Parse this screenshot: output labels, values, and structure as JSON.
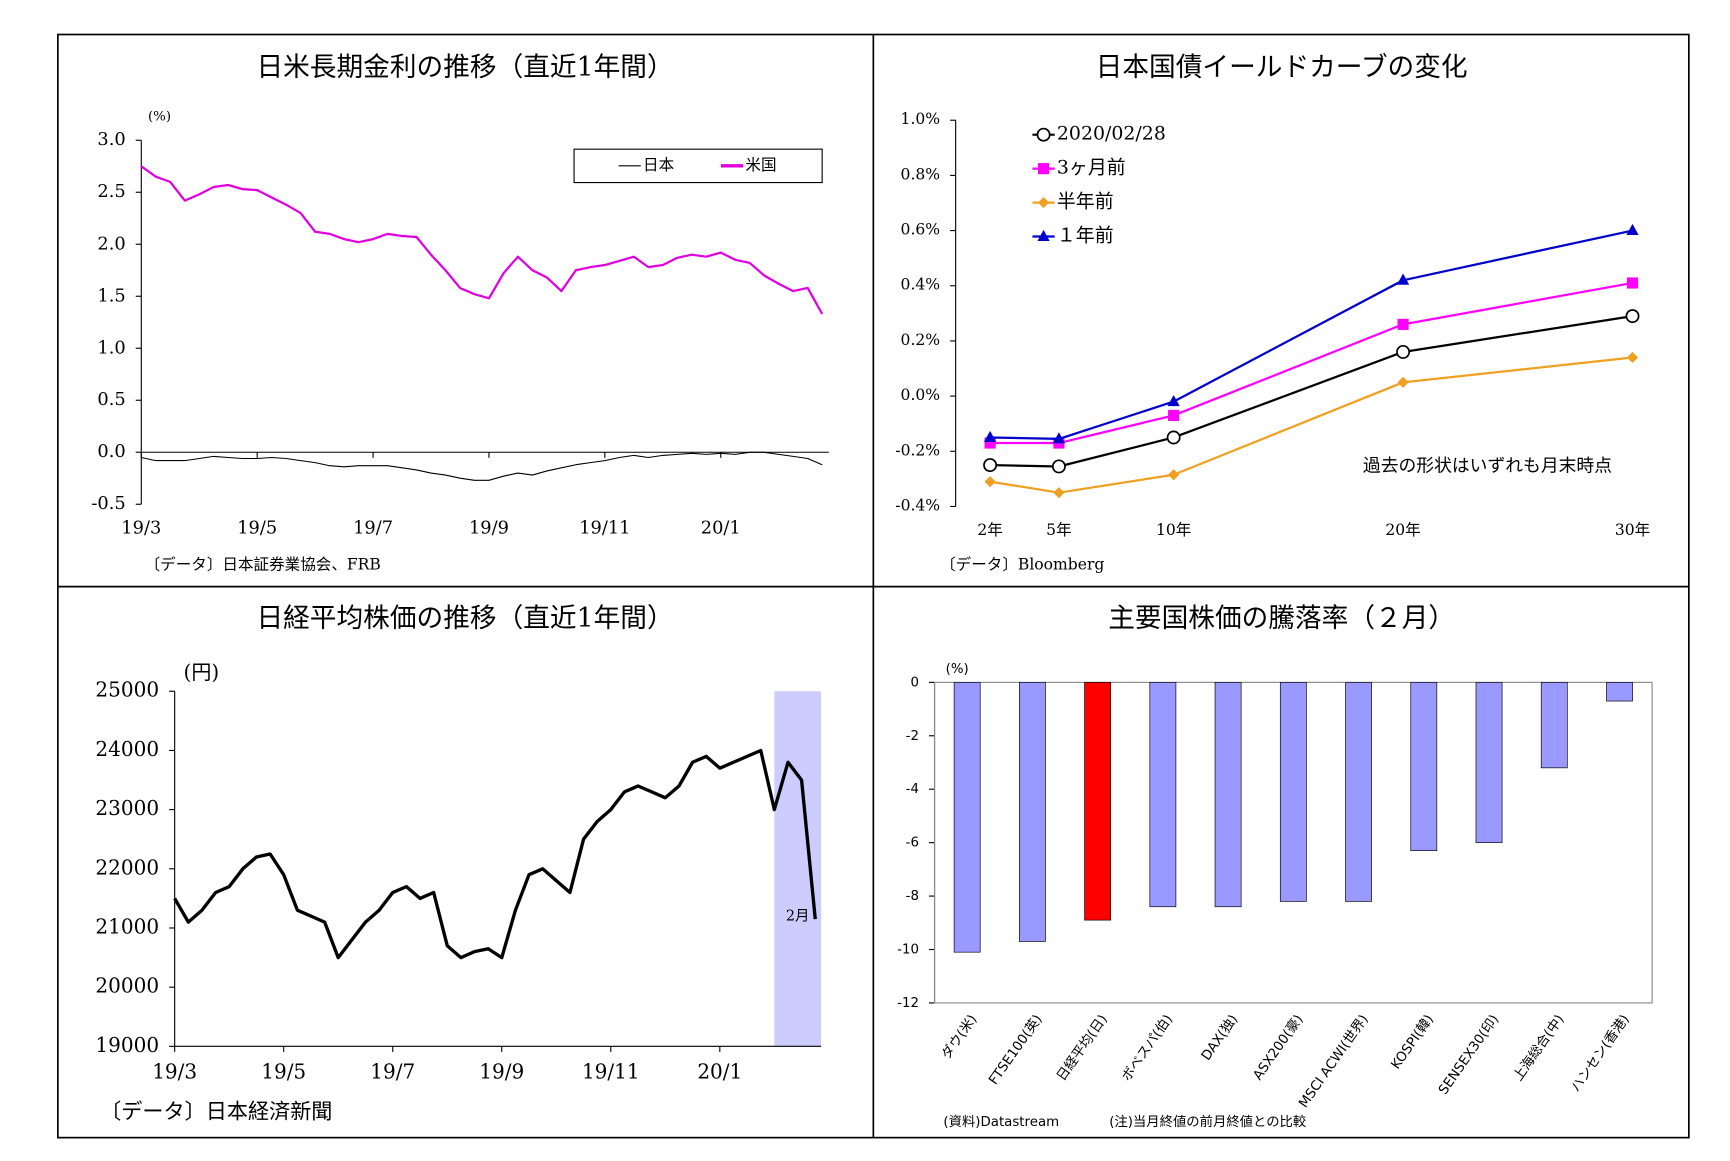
{
  "chart_data": [
    {
      "type": "line",
      "title": "日米長期金利の推移（直近1年間）",
      "unit": "(%)",
      "source": "〔データ〕日本証券業協会、FRB",
      "categories": [
        "19/3",
        null,
        null,
        null,
        null,
        null,
        null,
        null,
        "19/5",
        null,
        null,
        null,
        null,
        null,
        null,
        null,
        "19/7",
        null,
        null,
        null,
        null,
        null,
        null,
        null,
        "19/9",
        null,
        null,
        null,
        null,
        null,
        null,
        null,
        "19/11",
        null,
        null,
        null,
        null,
        null,
        null,
        null,
        "20/1",
        null,
        null,
        null,
        null,
        null,
        null,
        null
      ],
      "series": [
        {
          "name": "日本",
          "color": "#000000",
          "values": [
            -0.05,
            -0.08,
            -0.08,
            -0.08,
            -0.06,
            -0.04,
            -0.05,
            -0.06,
            -0.06,
            -0.05,
            -0.06,
            -0.08,
            -0.1,
            -0.13,
            -0.14,
            -0.13,
            -0.13,
            -0.13,
            -0.15,
            -0.17,
            -0.2,
            -0.22,
            -0.25,
            -0.27,
            -0.27,
            -0.23,
            -0.2,
            -0.22,
            -0.18,
            -0.15,
            -0.12,
            -0.1,
            -0.08,
            -0.05,
            -0.03,
            -0.05,
            -0.03,
            -0.02,
            -0.01,
            -0.02,
            -0.01,
            -0.02,
            0,
            0,
            -0.02,
            -0.04,
            -0.06,
            -0.12
          ]
        },
        {
          "name": "米国",
          "color": "#e000e0",
          "values": [
            2.75,
            2.65,
            2.6,
            2.42,
            2.48,
            2.55,
            2.57,
            2.53,
            2.52,
            2.45,
            2.38,
            2.3,
            2.12,
            2.1,
            2.05,
            2.02,
            2.05,
            2.1,
            2.08,
            2.07,
            1.9,
            1.75,
            1.58,
            1.52,
            1.48,
            1.72,
            1.88,
            1.75,
            1.68,
            1.55,
            1.75,
            1.78,
            1.8,
            1.84,
            1.88,
            1.78,
            1.8,
            1.87,
            1.9,
            1.88,
            1.92,
            1.85,
            1.82,
            1.7,
            1.62,
            1.55,
            1.58,
            1.33
          ]
        }
      ],
      "ylim": [
        -0.5,
        3.0
      ],
      "yticks": [
        {
          "value": 3.0,
          "label": "3.0"
        },
        2.5,
        {
          "value": 2.0,
          "label": "2.0"
        },
        1.5,
        {
          "value": 1.0,
          "label": "1.0"
        },
        0.5,
        {
          "value": 0.0,
          "label": "0.0"
        },
        -0.5
      ],
      "negative_tick_color": "#ff0000",
      "legend": "upper right"
    },
    {
      "type": "line",
      "title": "日本国債イールドカーブの変化",
      "source": "〔データ〕Bloomberg",
      "annotation": "過去の形状はいずれも月末時点",
      "x": [
        2,
        5,
        10,
        20,
        30
      ],
      "series": [
        {
          "name": "2020/02/28",
          "color": "#000000",
          "marker": "circle",
          "values": [
            -0.25,
            -0.255,
            -0.15,
            0.16,
            0.29
          ]
        },
        {
          "name": "3ヶ月前",
          "color": "#ff00ff",
          "marker": "square",
          "values": [
            -0.17,
            -0.17,
            -0.07,
            0.26,
            0.41
          ]
        },
        {
          "name": "半年前",
          "color": "#f0a020",
          "marker": "diamond",
          "values": [
            -0.31,
            -0.35,
            -0.285,
            0.05,
            0.14
          ]
        },
        {
          "name": "１年前",
          "color": "#0000cc",
          "marker": "triangle",
          "values": [
            -0.15,
            -0.155,
            -0.02,
            0.42,
            0.6
          ]
        }
      ],
      "xlim": [
        0.5,
        31
      ],
      "xticks": [
        {
          "value": 2,
          "label": "2年"
        },
        {
          "value": 5,
          "label": "5年"
        },
        {
          "value": 10,
          "label": "10年"
        },
        {
          "value": 20,
          "label": "20年"
        },
        {
          "value": 30,
          "label": "30年"
        }
      ],
      "ylim": [
        -0.4,
        1.0
      ],
      "yticks": [
        {
          "value": 1.0,
          "label": "1.0%"
        },
        {
          "value": 0.8,
          "label": "0.8%"
        },
        {
          "value": 0.6,
          "label": "0.6%"
        },
        {
          "value": 0.4,
          "label": "0.4%"
        },
        {
          "value": 0.2,
          "label": "0.2%"
        },
        {
          "value": 0.0,
          "label": "0.0%"
        },
        {
          "value": -0.2,
          "label": "-0.2%"
        },
        {
          "value": -0.4,
          "label": "-0.4%"
        }
      ],
      "legend": "upper left"
    },
    {
      "type": "line",
      "title": "日経平均株価の推移（直近1年間）",
      "unit": "(円)",
      "source": "〔データ〕日本経済新聞",
      "shade_label": "2月",
      "shade_color": "#ccccff",
      "categories": [
        "19/3",
        null,
        null,
        null,
        null,
        null,
        null,
        null,
        "19/5",
        null,
        null,
        null,
        null,
        null,
        null,
        null,
        "19/7",
        null,
        null,
        null,
        null,
        null,
        null,
        null,
        "19/9",
        null,
        null,
        null,
        null,
        null,
        null,
        null,
        "19/11",
        null,
        null,
        null,
        null,
        null,
        null,
        null,
        "20/1",
        null,
        null,
        null,
        null,
        null,
        null,
        null
      ],
      "series": [
        {
          "color": "#000000",
          "values": [
            21500,
            21100,
            21300,
            21600,
            21700,
            22000,
            22200,
            22250,
            21900,
            21300,
            21200,
            21100,
            20500,
            20800,
            21100,
            21300,
            21600,
            21700,
            21500,
            21600,
            20700,
            20500,
            20600,
            20650,
            20500,
            21300,
            21900,
            22000,
            21800,
            21600,
            22500,
            22800,
            23000,
            23300,
            23400,
            23300,
            23200,
            23400,
            23800,
            23900,
            23700,
            23800,
            23900,
            24000,
            23000,
            23800,
            23500,
            21150
          ]
        }
      ],
      "ylim": [
        19000,
        25000
      ],
      "yticks": [
        25000,
        24000,
        23000,
        22000,
        21000,
        20000,
        19000
      ]
    },
    {
      "type": "bar",
      "title": "主要国株価の騰落率（２月）",
      "unit": "(%)",
      "notes": [
        "(資料)Datastream",
        "(注)当月終値の前月終値との比較"
      ],
      "categories": [
        "ダウ(米)",
        "FTSE100(英)",
        "日経平均(日)",
        "ボベスパ(伯)",
        "DAX(独)",
        "ASX200(豪)",
        "MSCI ACWI(世界)",
        "KOSPI(韓)",
        "SENSEX30(印)",
        "上海総合(中)",
        "ハンセン(香港)"
      ],
      "values": [
        -10.1,
        -9.7,
        -8.9,
        -8.4,
        -8.4,
        -8.2,
        -8.2,
        -6.3,
        -6.0,
        -3.2,
        -0.7
      ],
      "colors": [
        "#9999ff",
        "#9999ff",
        "#ff0000",
        "#9999ff",
        "#9999ff",
        "#9999ff",
        "#9999ff",
        "#9999ff",
        "#9999ff",
        "#9999ff",
        "#9999ff"
      ],
      "ylim": [
        -12,
        0
      ],
      "yticks": [
        0,
        -2,
        -4,
        -6,
        -8,
        -10,
        -12
      ],
      "negative_tick_color": "#ff0000"
    }
  ]
}
